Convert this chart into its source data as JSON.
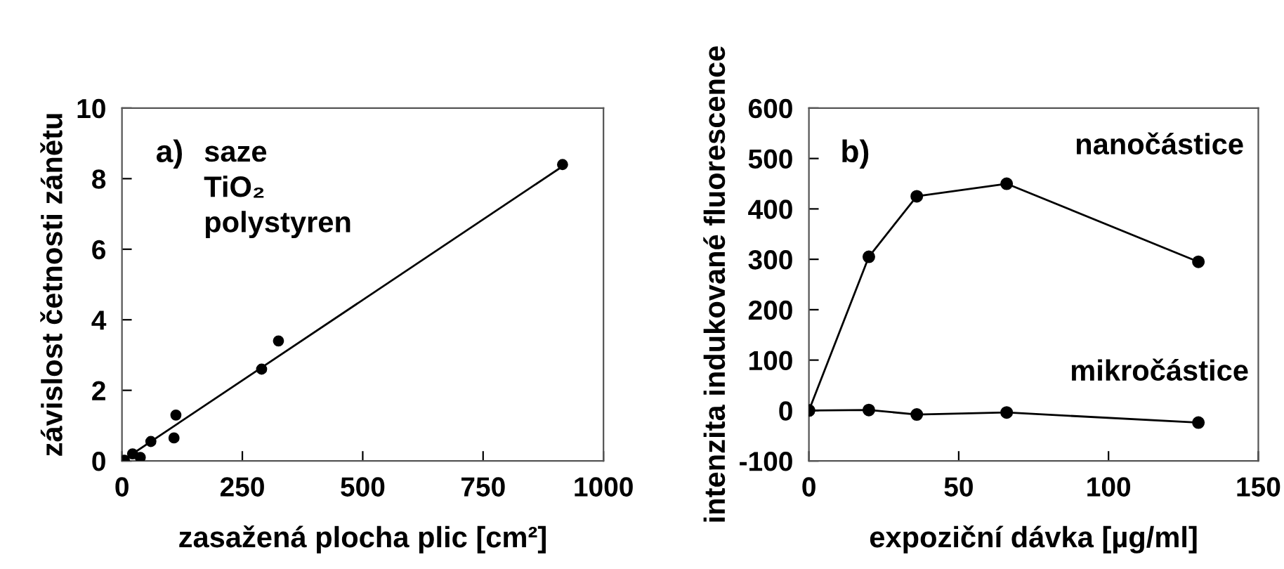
{
  "chart_data": [
    {
      "type": "scatter",
      "xlabel": "zasažená plocha plic [cm²]",
      "ylabel": "závislost četnosti zánětu",
      "annotations": [
        "a)",
        "saze",
        "TiO₂",
        "polystyren"
      ],
      "series": [
        {
          "type": "scatter",
          "color": "#000000",
          "marker": "circle",
          "x": [
            5,
            22,
            38,
            60,
            108,
            112,
            290,
            325,
            915
          ],
          "values": [
            0.02,
            0.2,
            0.1,
            0.55,
            0.65,
            1.3,
            2.6,
            3.4,
            8.4
          ]
        },
        {
          "type": "line",
          "color": "#000000",
          "marker": "none",
          "x": [
            0,
            915
          ],
          "values": [
            0,
            8.35
          ]
        }
      ],
      "xlim": [
        0,
        1000
      ],
      "xticks": [
        0,
        250,
        500,
        750,
        1000
      ],
      "ylim": [
        0,
        10
      ],
      "yticks": [
        0,
        2,
        4,
        6,
        8,
        10
      ],
      "grid": false,
      "legend": false
    },
    {
      "type": "line",
      "xlabel": "expoziční dávka [µg/ml]",
      "ylabel": "intenzita indukované fluorescence",
      "annotations": [
        "b)"
      ],
      "series": [
        {
          "name": "nanočástice",
          "color": "#000000",
          "marker": "circle",
          "x": [
            0,
            20,
            36,
            66,
            130
          ],
          "values": [
            0,
            305,
            425,
            450,
            295
          ]
        },
        {
          "name": "mikročástice",
          "color": "#000000",
          "marker": "circle",
          "x": [
            0,
            20,
            36,
            66,
            130
          ],
          "values": [
            0,
            1,
            -8,
            -4,
            -24
          ]
        }
      ],
      "xlim": [
        0,
        150
      ],
      "xticks": [
        0,
        50,
        100,
        150
      ],
      "ylim": [
        -100,
        600
      ],
      "yticks": [
        -100,
        0,
        100,
        200,
        300,
        400,
        500,
        600
      ],
      "grid": false,
      "legend": false
    }
  ]
}
